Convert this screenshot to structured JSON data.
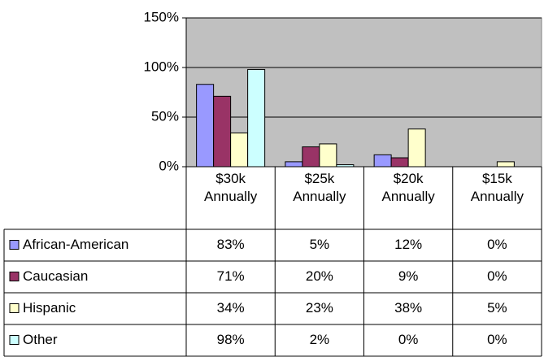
{
  "chart_data": {
    "type": "bar",
    "categories": [
      "$30k Annually",
      "$25k Annually",
      "$20k Annually",
      "$15k Annually"
    ],
    "series": [
      {
        "name": "African-American",
        "color": "#9999ff",
        "values": [
          83,
          5,
          12,
          0
        ],
        "value_labels": [
          "83%",
          "5%",
          "12%",
          "0%"
        ]
      },
      {
        "name": "Caucasian",
        "color": "#993366",
        "values": [
          71,
          20,
          9,
          0
        ],
        "value_labels": [
          "71%",
          "20%",
          "9%",
          "0%"
        ]
      },
      {
        "name": "Hispanic",
        "color": "#ffffcc",
        "values": [
          34,
          23,
          38,
          5
        ],
        "value_labels": [
          "34%",
          "23%",
          "38%",
          "5%"
        ]
      },
      {
        "name": "Other",
        "color": "#ccffff",
        "values": [
          98,
          2,
          0,
          0
        ],
        "value_labels": [
          "98%",
          "2%",
          "0%",
          "0%"
        ]
      }
    ],
    "ylim": [
      0,
      150
    ],
    "yticks": [
      {
        "value": 0,
        "label": "0%"
      },
      {
        "value": 50,
        "label": "50%"
      },
      {
        "value": 100,
        "label": "100%"
      },
      {
        "value": 150,
        "label": "150%"
      }
    ],
    "grid": true,
    "legend": "table"
  }
}
